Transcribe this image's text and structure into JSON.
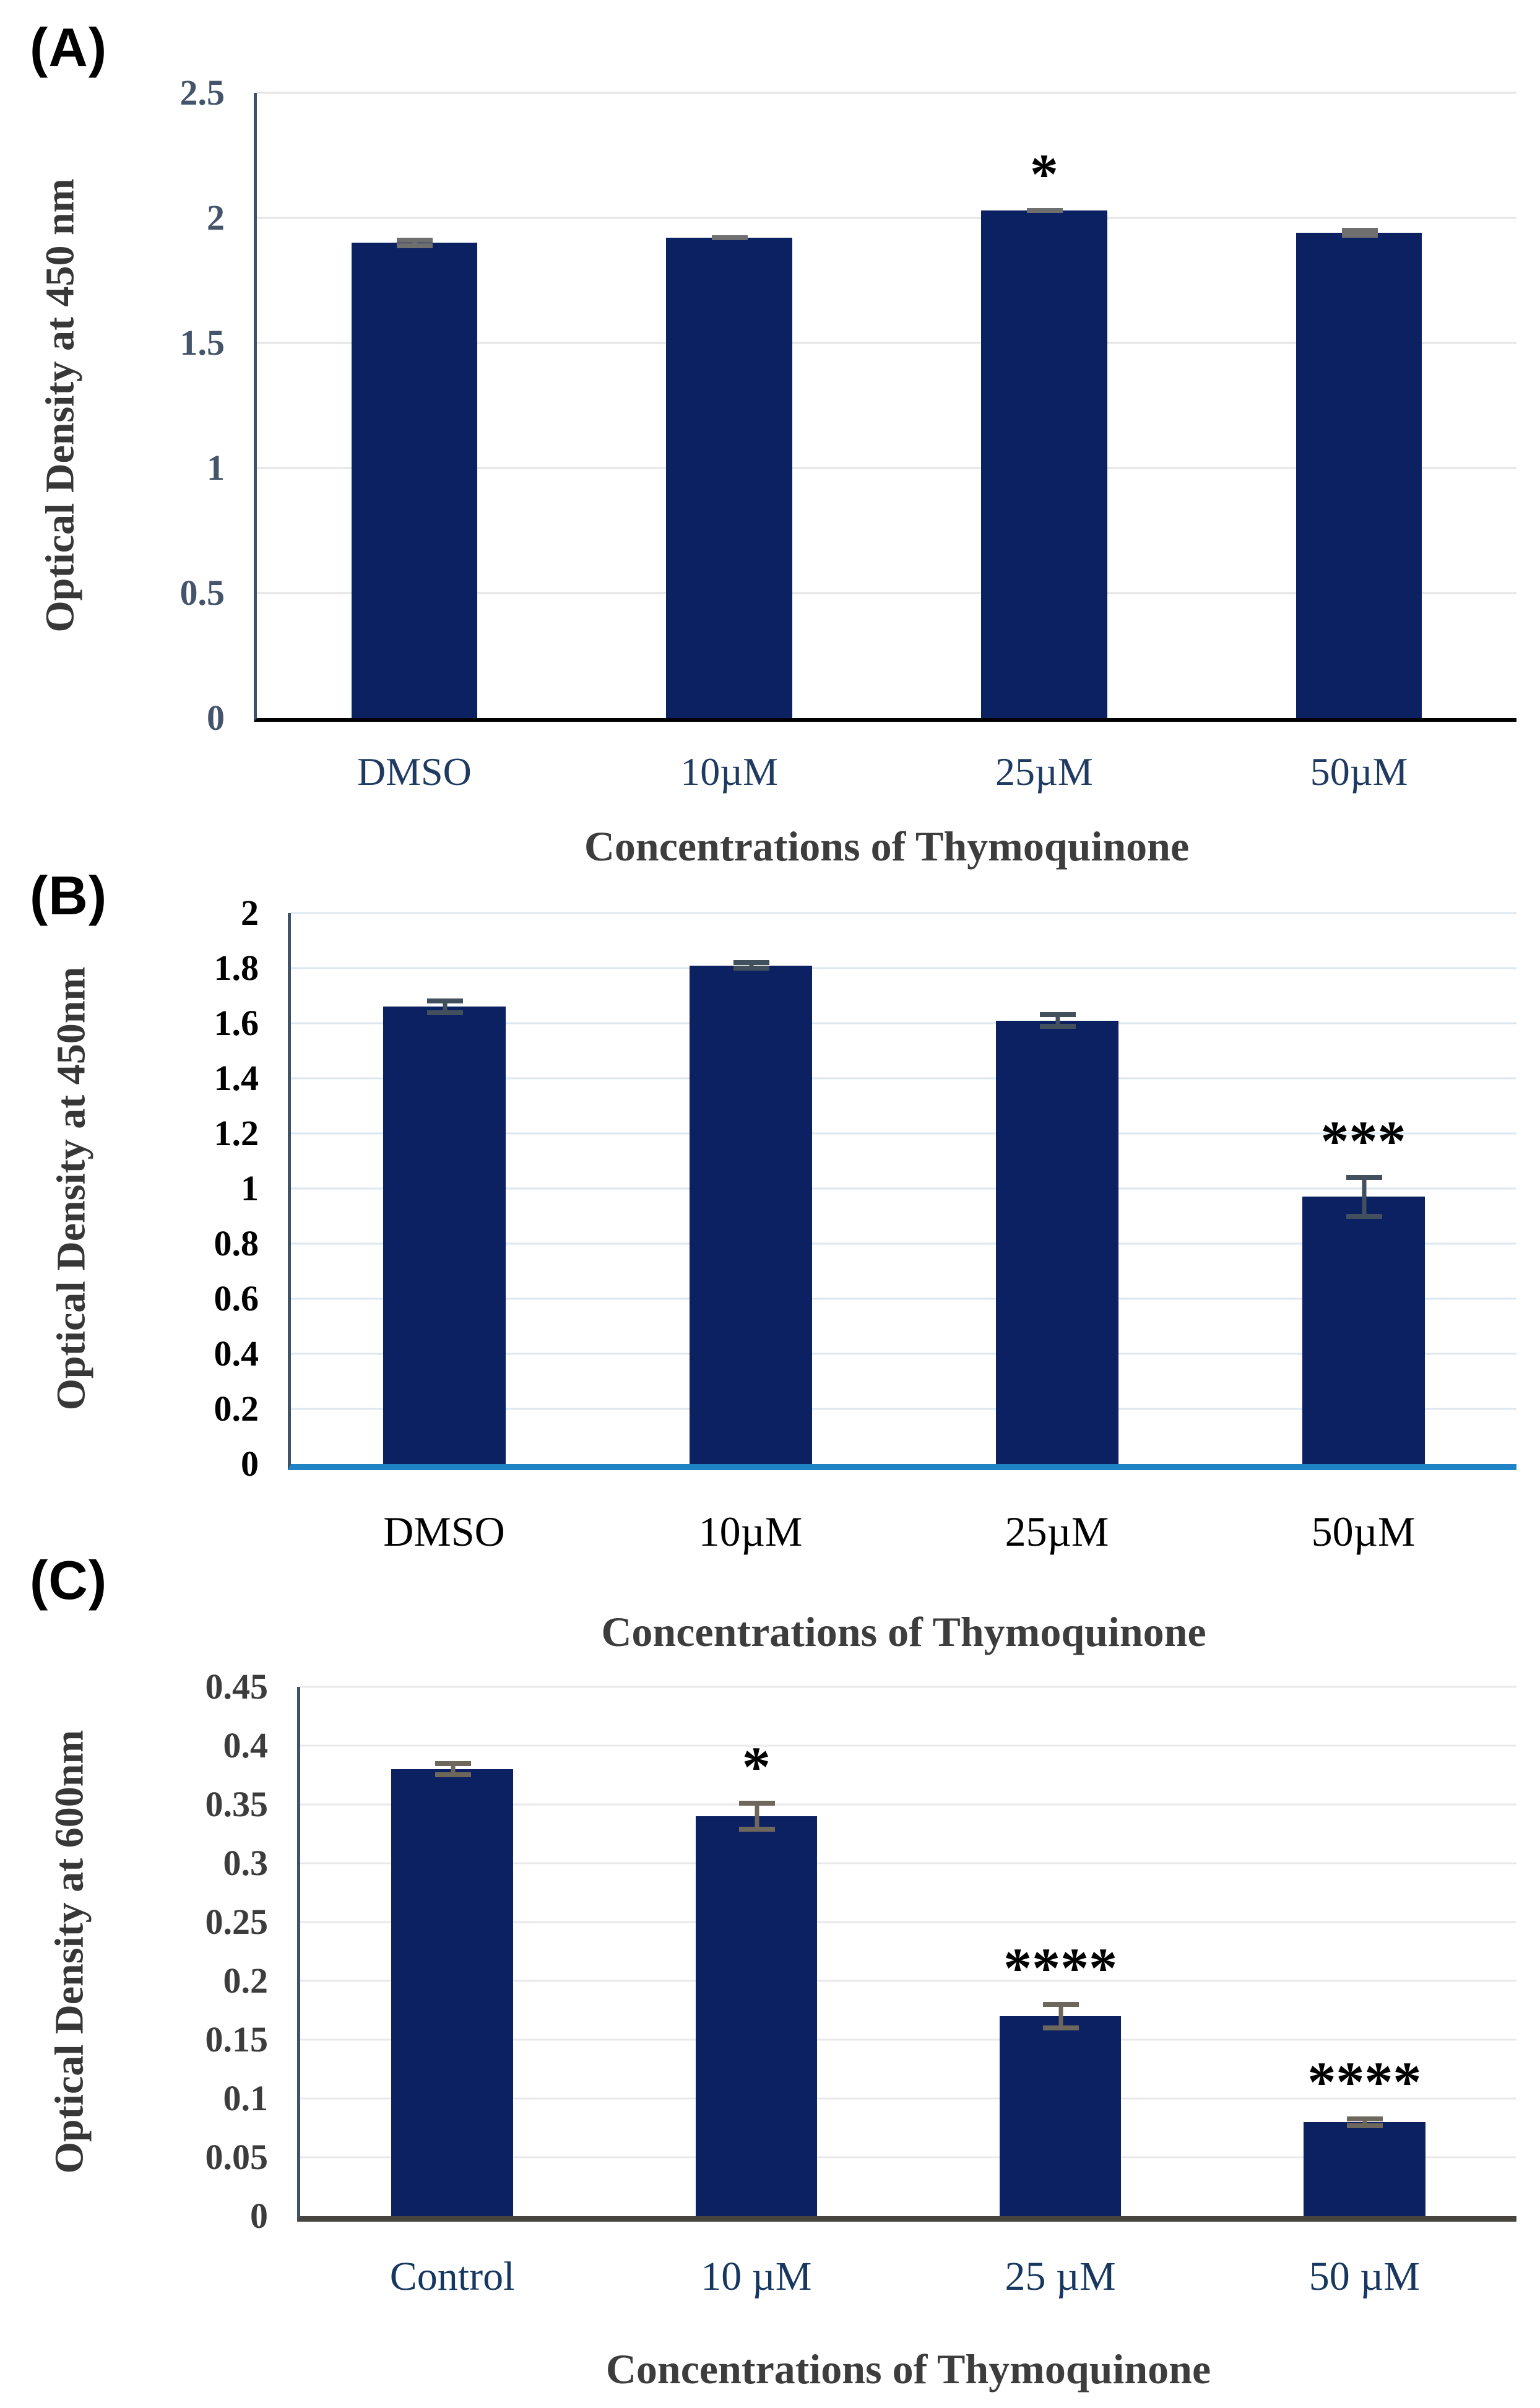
{
  "figure": {
    "background": "#ffffff",
    "bar_color": "#0b2161"
  },
  "chart_data": [
    {
      "type": "bar",
      "panel_label": "(A)",
      "title": "",
      "ylabel": "Optical Density at 450 nm",
      "xlabel": "Concentrations of Thymoquinone",
      "categories": [
        "DMSO",
        "10µM",
        "25µM",
        "50µM"
      ],
      "values": [
        1.9,
        1.92,
        2.03,
        1.94
      ],
      "errors": [
        0.022,
        0.01,
        0.01,
        0.02
      ],
      "significance": [
        "",
        "",
        "*",
        ""
      ],
      "ylim": [
        0,
        2.5
      ],
      "ytick_values": [
        2.5,
        2,
        1.5,
        1,
        0.5,
        0
      ],
      "yticks": [
        "2.5",
        "2",
        "1.5",
        "1",
        "0.5",
        "0"
      ],
      "grid": true,
      "legend": "none",
      "colors": {
        "bar": "#0b2161",
        "tick_label": "#44546a",
        "category_label": "#1f3b61",
        "gridline": "#e4e4e4",
        "baseline": "#000000",
        "y_axis": "#3f5266",
        "error": "#6f6f6f"
      }
    },
    {
      "type": "bar",
      "panel_label": "(B)",
      "title": "",
      "ylabel": "Optical Density at 450nm",
      "xlabel": "Concentrations of Thymoquinone",
      "categories": [
        "DMSO",
        "10µM",
        "25µM",
        "50µM"
      ],
      "values": [
        1.66,
        1.81,
        1.61,
        0.97
      ],
      "errors": [
        0.03,
        0.02,
        0.03,
        0.08
      ],
      "significance": [
        "",
        "",
        "",
        "***"
      ],
      "ylim": [
        0,
        2
      ],
      "ytick_values": [
        2,
        1.8,
        1.6,
        1.4,
        1.2,
        1,
        0.8,
        0.6,
        0.4,
        0.2,
        0
      ],
      "yticks": [
        "2",
        "1.8",
        "1.6",
        "1.4",
        "1.2",
        "1",
        "0.8",
        "0.6",
        "0.4",
        "0.2",
        "0"
      ],
      "grid": true,
      "legend": "none",
      "colors": {
        "bar": "#0b2161",
        "tick_label": "#000000",
        "category_label": "#000000",
        "gridline": "#dde7f0",
        "baseline": "#1f83c5",
        "y_axis": "#3f5266",
        "error": "#41505c"
      }
    },
    {
      "type": "bar",
      "panel_label": "(C)",
      "title": "",
      "ylabel": "Optical Density at 600nm",
      "xlabel": "Concentrations of Thymoquinone",
      "categories": [
        "Control",
        "10 µM",
        "25 µM",
        "50 µM"
      ],
      "values": [
        0.38,
        0.34,
        0.17,
        0.08
      ],
      "errors": [
        0.007,
        0.013,
        0.012,
        0.005
      ],
      "significance": [
        "",
        "*",
        "****",
        "****"
      ],
      "ylim": [
        0,
        0.45
      ],
      "ytick_values": [
        0.45,
        0.4,
        0.35,
        0.3,
        0.25,
        0.2,
        0.15,
        0.1,
        0.05,
        0
      ],
      "yticks": [
        "0.45",
        "0.4",
        "0.35",
        "0.3",
        "0.25",
        "0.2",
        "0.15",
        "0.1",
        "0.05",
        "0"
      ],
      "grid": true,
      "legend": "none",
      "colors": {
        "bar": "#0b2161",
        "tick_label": "#3c3c3c",
        "category_label": "#16375f",
        "gridline": "#e9e9e9",
        "baseline": "#474440",
        "y_axis": "#3f5266",
        "error": "#6e675c"
      }
    }
  ]
}
